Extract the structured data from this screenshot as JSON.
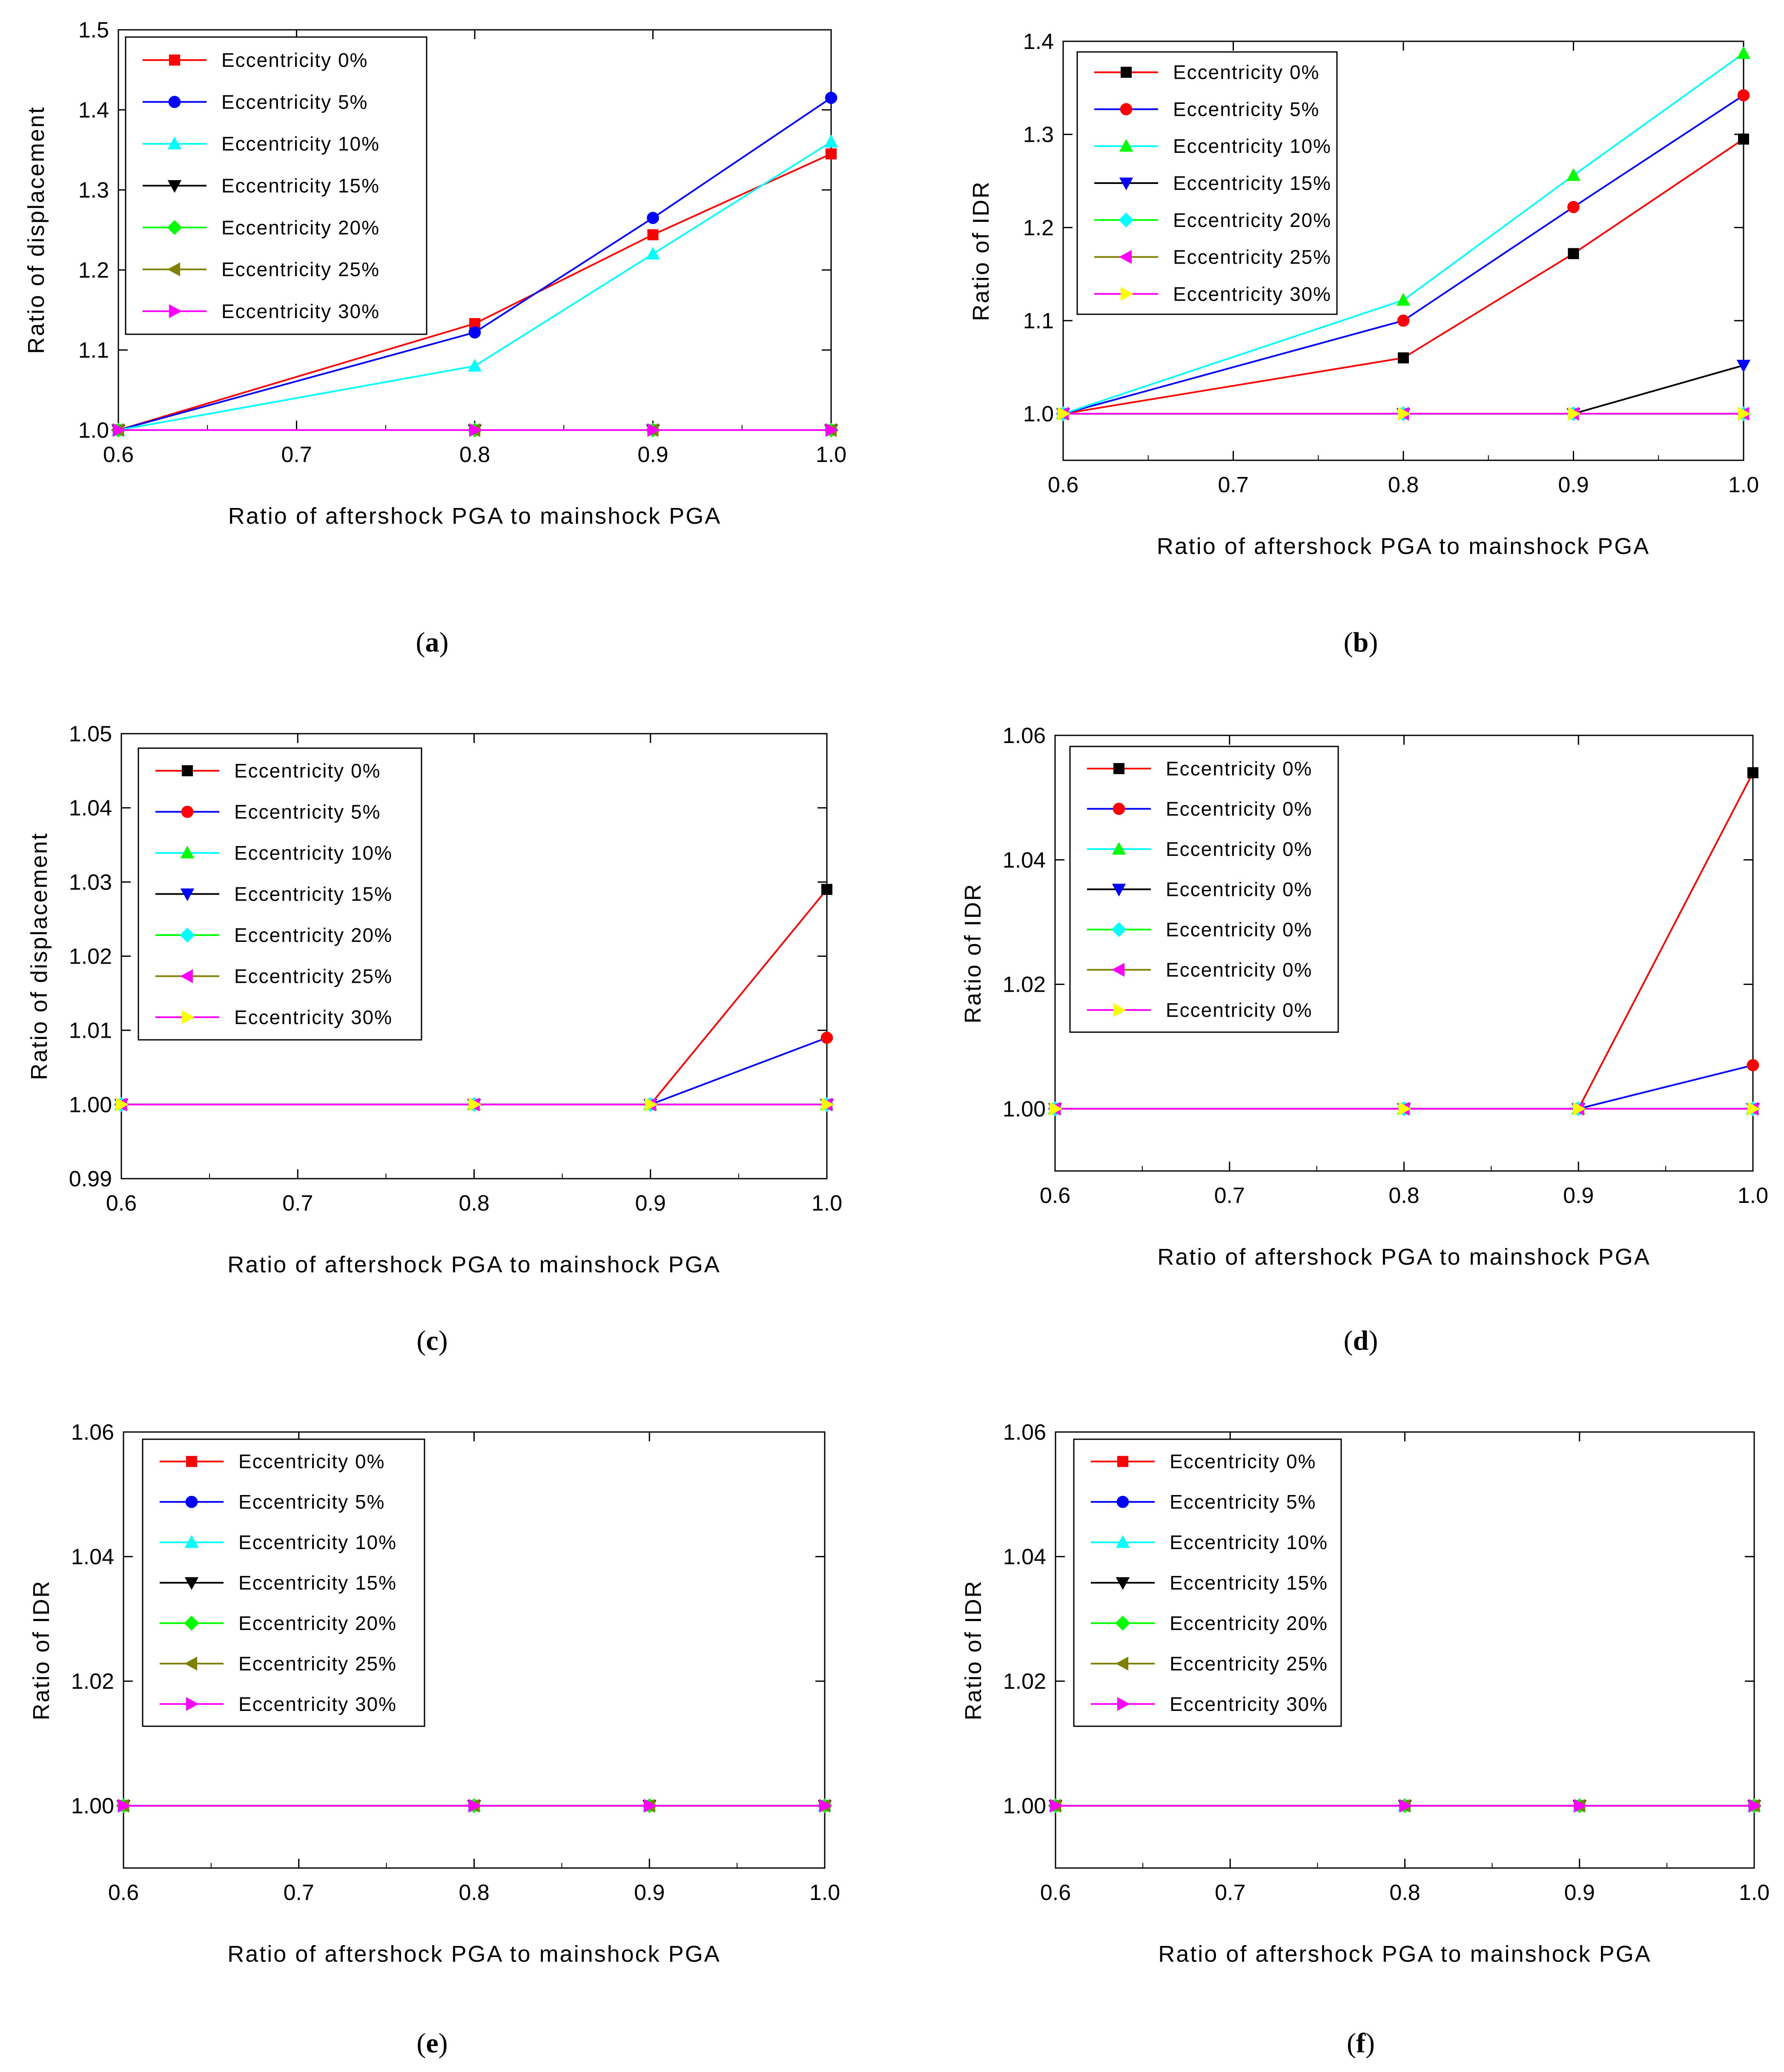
{
  "chart_data": [
    {
      "type": "line",
      "caption": "(a)",
      "caption_letter": "a",
      "xlabel": "Ratio of aftershock PGA to mainshock PGA",
      "ylabel": "Ratio of displacement",
      "xlim": [
        0.6,
        1.0
      ],
      "ylim": [
        1.0,
        1.5
      ],
      "xticks": [
        0.6,
        0.7,
        0.8,
        0.9,
        1.0
      ],
      "xtick_labels": [
        "0.6",
        "0.7",
        "0.8",
        "0.9",
        "1.0"
      ],
      "yticks": [
        1.0,
        1.1,
        1.2,
        1.3,
        1.4,
        1.5
      ],
      "ytick_labels": [
        "1.0",
        "1.1",
        "1.2",
        "1.3",
        "1.4",
        "1.5"
      ],
      "x": [
        0.6,
        0.8,
        0.9,
        1.0
      ],
      "legend_position": "top-left",
      "series": [
        {
          "name": "Eccentricity 0%",
          "color": "#ff0000",
          "marker_color": "#ff0000",
          "marker": "square",
          "values": [
            1.0,
            1.133,
            1.244,
            1.345
          ]
        },
        {
          "name": "Eccentricity 5%",
          "color": "#0000ff",
          "marker_color": "#0000ff",
          "marker": "circle",
          "values": [
            1.0,
            1.122,
            1.265,
            1.415
          ]
        },
        {
          "name": "Eccentricity 10%",
          "color": "#00ffff",
          "marker_color": "#00ffff",
          "marker": "triangle-up",
          "values": [
            1.0,
            1.08,
            1.22,
            1.36
          ]
        },
        {
          "name": "Eccentricity 15%",
          "color": "#000000",
          "marker_color": "#000000",
          "marker": "triangle-down",
          "values": [
            1.0,
            1.0,
            1.0,
            1.0
          ]
        },
        {
          "name": "Eccentricity 20%",
          "color": "#00ff00",
          "marker_color": "#00ff00",
          "marker": "diamond",
          "values": [
            1.0,
            1.0,
            1.0,
            1.0
          ]
        },
        {
          "name": "Eccentricity 25%",
          "color": "#808000",
          "marker_color": "#808000",
          "marker": "triangle-left",
          "values": [
            1.0,
            1.0,
            1.0,
            1.0
          ]
        },
        {
          "name": "Eccentricity 30%",
          "color": "#ff00ff",
          "marker_color": "#ff00ff",
          "marker": "triangle-right",
          "values": [
            1.0,
            1.0,
            1.0,
            1.0
          ]
        }
      ]
    },
    {
      "type": "line",
      "caption": "(b)",
      "caption_letter": "b",
      "xlabel": "Ratio of aftershock PGA to mainshock PGA",
      "ylabel": "Ratio of IDR",
      "xlim": [
        0.6,
        1.0
      ],
      "ylim": [
        0.95,
        1.4
      ],
      "xticks": [
        0.6,
        0.7,
        0.8,
        0.9,
        1.0
      ],
      "xtick_labels": [
        "0.6",
        "0.7",
        "0.8",
        "0.9",
        "1.0"
      ],
      "yticks": [
        1.0,
        1.1,
        1.2,
        1.3,
        1.4
      ],
      "ytick_labels": [
        "1.0",
        "1.1",
        "1.2",
        "1.3",
        "1.4"
      ],
      "x": [
        0.6,
        0.8,
        0.9,
        1.0
      ],
      "legend_position": "top-left",
      "series": [
        {
          "name": "Eccentricity 0%",
          "color": "#ff0000",
          "marker_color": "#000000",
          "marker": "square",
          "values": [
            1.0,
            1.06,
            1.172,
            1.295
          ]
        },
        {
          "name": "Eccentricity 5%",
          "color": "#0000ff",
          "marker_color": "#ff0000",
          "marker": "circle",
          "values": [
            1.0,
            1.1,
            1.222,
            1.342
          ]
        },
        {
          "name": "Eccentricity 10%",
          "color": "#00ffff",
          "marker_color": "#00ff00",
          "marker": "triangle-up",
          "values": [
            1.0,
            1.122,
            1.256,
            1.387
          ]
        },
        {
          "name": "Eccentricity 15%",
          "color": "#000000",
          "marker_color": "#0000ff",
          "marker": "triangle-down",
          "values": [
            1.0,
            1.0,
            1.0,
            1.052
          ]
        },
        {
          "name": "Eccentricity 20%",
          "color": "#00ff00",
          "marker_color": "#00ffff",
          "marker": "diamond",
          "values": [
            1.0,
            1.0,
            1.0,
            1.0
          ]
        },
        {
          "name": "Eccentricity 25%",
          "color": "#808000",
          "marker_color": "#ff00ff",
          "marker": "triangle-left",
          "values": [
            1.0,
            1.0,
            1.0,
            1.0
          ]
        },
        {
          "name": "Eccentricity 30%",
          "color": "#ff00ff",
          "marker_color": "#ffff00",
          "marker": "triangle-right",
          "values": [
            1.0,
            1.0,
            1.0,
            1.0
          ]
        }
      ]
    },
    {
      "type": "line",
      "caption": "(c)",
      "caption_letter": "c",
      "xlabel": "Ratio of aftershock PGA to mainshock PGA",
      "ylabel": "Ratio of displacement",
      "xlim": [
        0.6,
        1.0
      ],
      "ylim": [
        0.99,
        1.05
      ],
      "xticks": [
        0.6,
        0.7,
        0.8,
        0.9,
        1.0
      ],
      "xtick_labels": [
        "0.6",
        "0.7",
        "0.8",
        "0.9",
        "1.0"
      ],
      "yticks": [
        0.99,
        1.0,
        1.01,
        1.02,
        1.03,
        1.04,
        1.05
      ],
      "ytick_labels": [
        "0.99",
        "1.00",
        "1.01",
        "1.02",
        "1.03",
        "1.04",
        "1.05"
      ],
      "x": [
        0.6,
        0.8,
        0.9,
        1.0
      ],
      "legend_position": "top-left",
      "series": [
        {
          "name": "Eccentricity 0%",
          "color": "#ff0000",
          "marker_color": "#000000",
          "marker": "square",
          "values": [
            1.0,
            1.0,
            1.0,
            1.029
          ]
        },
        {
          "name": "Eccentricity 5%",
          "color": "#0000ff",
          "marker_color": "#ff0000",
          "marker": "circle",
          "values": [
            1.0,
            1.0,
            1.0,
            1.009
          ]
        },
        {
          "name": "Eccentricity 10%",
          "color": "#00ffff",
          "marker_color": "#00ff00",
          "marker": "triangle-up",
          "values": [
            1.0,
            1.0,
            1.0,
            1.0
          ]
        },
        {
          "name": "Eccentricity 15%",
          "color": "#000000",
          "marker_color": "#0000ff",
          "marker": "triangle-down",
          "values": [
            1.0,
            1.0,
            1.0,
            1.0
          ]
        },
        {
          "name": "Eccentricity 20%",
          "color": "#00ff00",
          "marker_color": "#00ffff",
          "marker": "diamond",
          "values": [
            1.0,
            1.0,
            1.0,
            1.0
          ]
        },
        {
          "name": "Eccentricity 25%",
          "color": "#808000",
          "marker_color": "#ff00ff",
          "marker": "triangle-left",
          "values": [
            1.0,
            1.0,
            1.0,
            1.0
          ]
        },
        {
          "name": "Eccentricity 30%",
          "color": "#ff00ff",
          "marker_color": "#ffff00",
          "marker": "triangle-right",
          "values": [
            1.0,
            1.0,
            1.0,
            1.0
          ]
        }
      ]
    },
    {
      "type": "line",
      "caption": "(d)",
      "caption_letter": "d",
      "xlabel": "Ratio of aftershock PGA to mainshock PGA",
      "ylabel": "Ratio of IDR",
      "xlim": [
        0.6,
        1.0
      ],
      "ylim": [
        0.99,
        1.06
      ],
      "xticks": [
        0.6,
        0.7,
        0.8,
        0.9,
        1.0
      ],
      "xtick_labels": [
        "0.6",
        "0.7",
        "0.8",
        "0.9",
        "1.0"
      ],
      "yticks": [
        1.0,
        1.02,
        1.04,
        1.06
      ],
      "ytick_labels": [
        "1.00",
        "1.02",
        "1.04",
        "1.06"
      ],
      "x": [
        0.6,
        0.8,
        0.9,
        1.0
      ],
      "legend_position": "top-left",
      "series": [
        {
          "name": "Eccentricity 0%",
          "color": "#ff0000",
          "marker_color": "#000000",
          "marker": "square",
          "values": [
            1.0,
            1.0,
            1.0,
            1.054
          ]
        },
        {
          "name": "Eccentricity 0%",
          "color": "#0000ff",
          "marker_color": "#ff0000",
          "marker": "circle",
          "values": [
            1.0,
            1.0,
            1.0,
            1.007
          ]
        },
        {
          "name": "Eccentricity 0%",
          "color": "#00ffff",
          "marker_color": "#00ff00",
          "marker": "triangle-up",
          "values": [
            1.0,
            1.0,
            1.0,
            1.0
          ]
        },
        {
          "name": "Eccentricity 0%",
          "color": "#000000",
          "marker_color": "#0000ff",
          "marker": "triangle-down",
          "values": [
            1.0,
            1.0,
            1.0,
            1.0
          ]
        },
        {
          "name": "Eccentricity 0%",
          "color": "#00ff00",
          "marker_color": "#00ffff",
          "marker": "diamond",
          "values": [
            1.0,
            1.0,
            1.0,
            1.0
          ]
        },
        {
          "name": "Eccentricity 0%",
          "color": "#808000",
          "marker_color": "#ff00ff",
          "marker": "triangle-left",
          "values": [
            1.0,
            1.0,
            1.0,
            1.0
          ]
        },
        {
          "name": "Eccentricity 0%",
          "color": "#ff00ff",
          "marker_color": "#ffff00",
          "marker": "triangle-right",
          "values": [
            1.0,
            1.0,
            1.0,
            1.0
          ]
        }
      ]
    },
    {
      "type": "line",
      "caption": "(e)",
      "caption_letter": "e",
      "xlabel": "Ratio of aftershock PGA to mainshock PGA",
      "ylabel": "Ratio of IDR",
      "xlim": [
        0.6,
        1.0
      ],
      "ylim": [
        0.99,
        1.06
      ],
      "xticks": [
        0.6,
        0.7,
        0.8,
        0.9,
        1.0
      ],
      "xtick_labels": [
        "0.6",
        "0.7",
        "0.8",
        "0.9",
        "1.0"
      ],
      "yticks": [
        1.0,
        1.02,
        1.04,
        1.06
      ],
      "ytick_labels": [
        "1.00",
        "1.02",
        "1.04",
        "1.06"
      ],
      "x": [
        0.6,
        0.8,
        0.9,
        1.0
      ],
      "legend_position": "top-left",
      "series": [
        {
          "name": "Eccentricity 0%",
          "color": "#ff0000",
          "marker_color": "#ff0000",
          "marker": "square",
          "values": [
            1.0,
            1.0,
            1.0,
            1.0
          ]
        },
        {
          "name": "Eccentricity 5%",
          "color": "#0000ff",
          "marker_color": "#0000ff",
          "marker": "circle",
          "values": [
            1.0,
            1.0,
            1.0,
            1.0
          ]
        },
        {
          "name": "Eccentricity 10%",
          "color": "#00ffff",
          "marker_color": "#00ffff",
          "marker": "triangle-up",
          "values": [
            1.0,
            1.0,
            1.0,
            1.0
          ]
        },
        {
          "name": "Eccentricity 15%",
          "color": "#000000",
          "marker_color": "#000000",
          "marker": "triangle-down",
          "values": [
            1.0,
            1.0,
            1.0,
            1.0
          ]
        },
        {
          "name": "Eccentricity 20%",
          "color": "#00ff00",
          "marker_color": "#00ff00",
          "marker": "diamond",
          "values": [
            1.0,
            1.0,
            1.0,
            1.0
          ]
        },
        {
          "name": "Eccentricity 25%",
          "color": "#808000",
          "marker_color": "#808000",
          "marker": "triangle-left",
          "values": [
            1.0,
            1.0,
            1.0,
            1.0
          ]
        },
        {
          "name": "Eccentricity 30%",
          "color": "#ff00ff",
          "marker_color": "#ff00ff",
          "marker": "triangle-right",
          "values": [
            1.0,
            1.0,
            1.0,
            1.0
          ]
        }
      ]
    },
    {
      "type": "line",
      "caption": "(f)",
      "caption_letter": "f",
      "xlabel": "Ratio of aftershock PGA to mainshock PGA",
      "ylabel": "Ratio of IDR",
      "xlim": [
        0.6,
        1.0
      ],
      "ylim": [
        0.99,
        1.06
      ],
      "xticks": [
        0.6,
        0.7,
        0.8,
        0.9,
        1.0
      ],
      "xtick_labels": [
        "0.6",
        "0.7",
        "0.8",
        "0.9",
        "1.0"
      ],
      "yticks": [
        1.0,
        1.02,
        1.04,
        1.06
      ],
      "ytick_labels": [
        "1.00",
        "1.02",
        "1.04",
        "1.06"
      ],
      "x": [
        0.6,
        0.8,
        0.9,
        1.0
      ],
      "legend_position": "top-left",
      "series": [
        {
          "name": "Eccentricity 0%",
          "color": "#ff0000",
          "marker_color": "#ff0000",
          "marker": "square",
          "values": [
            1.0,
            1.0,
            1.0,
            1.0
          ]
        },
        {
          "name": "Eccentricity 5%",
          "color": "#0000ff",
          "marker_color": "#0000ff",
          "marker": "circle",
          "values": [
            1.0,
            1.0,
            1.0,
            1.0
          ]
        },
        {
          "name": "Eccentricity 10%",
          "color": "#00ffff",
          "marker_color": "#00ffff",
          "marker": "triangle-up",
          "values": [
            1.0,
            1.0,
            1.0,
            1.0
          ]
        },
        {
          "name": "Eccentricity 15%",
          "color": "#000000",
          "marker_color": "#000000",
          "marker": "triangle-down",
          "values": [
            1.0,
            1.0,
            1.0,
            1.0
          ]
        },
        {
          "name": "Eccentricity 20%",
          "color": "#00ff00",
          "marker_color": "#00ff00",
          "marker": "diamond",
          "values": [
            1.0,
            1.0,
            1.0,
            1.0
          ]
        },
        {
          "name": "Eccentricity 25%",
          "color": "#808000",
          "marker_color": "#808000",
          "marker": "triangle-left",
          "values": [
            1.0,
            1.0,
            1.0,
            1.0
          ]
        },
        {
          "name": "Eccentricity 30%",
          "color": "#ff00ff",
          "marker_color": "#ff00ff",
          "marker": "triangle-right",
          "values": [
            1.0,
            1.0,
            1.0,
            1.0
          ]
        }
      ]
    }
  ]
}
